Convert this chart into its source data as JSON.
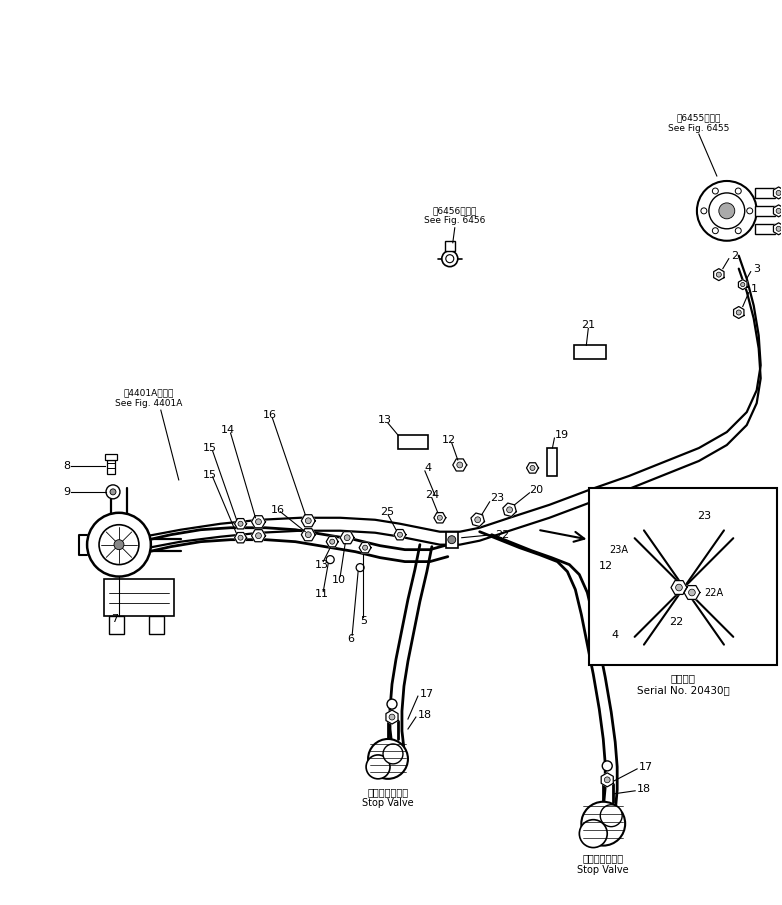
{
  "bg_color": "#ffffff",
  "fig_width": 7.82,
  "fig_height": 9.05,
  "dpi": 100,
  "lw_pipe": 1.6,
  "lw_hose": 2.0,
  "lw_thin": 0.9,
  "fs_label": 8,
  "fs_ref": 6.5,
  "fs_small": 7,
  "ref_4401": "第4401A図参照\nSee Fig. 4401A",
  "ref_6456": "第6456図参照\nSee Fig. 6456",
  "ref_6455": "第6455図参照\nSee Fig. 6455",
  "stopvalve_text": "ストップバルブ\nStop Valve",
  "serial_text": "適用号機\nSerial No. 20430～"
}
